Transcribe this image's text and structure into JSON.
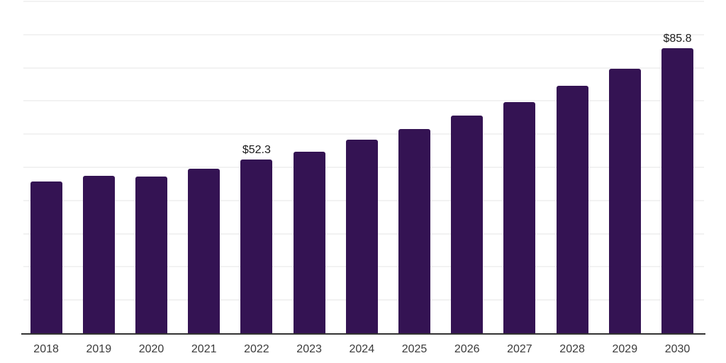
{
  "chart_data": {
    "type": "bar",
    "title": "",
    "xlabel": "",
    "ylabel": "",
    "categories": [
      "2018",
      "2019",
      "2020",
      "2021",
      "2022",
      "2023",
      "2024",
      "2025",
      "2026",
      "2027",
      "2028",
      "2029",
      "2030"
    ],
    "values": [
      45.8,
      47.4,
      47.2,
      49.6,
      52.3,
      54.8,
      58.4,
      61.6,
      65.6,
      69.6,
      74.5,
      79.6,
      85.8
    ],
    "data_labels": {
      "2022": "$52.3",
      "2030": "$85.8"
    },
    "ylim": [
      0,
      100
    ],
    "grid_step": 10,
    "grid": true,
    "legend": false,
    "y_tick_labels_visible": false,
    "bar_color": "#341353",
    "axis_line_color": "#333333",
    "grid_color": "#f2f2f2",
    "data_label_color": "#1a1a1a",
    "x_tick_color": "#3b3b3b"
  }
}
